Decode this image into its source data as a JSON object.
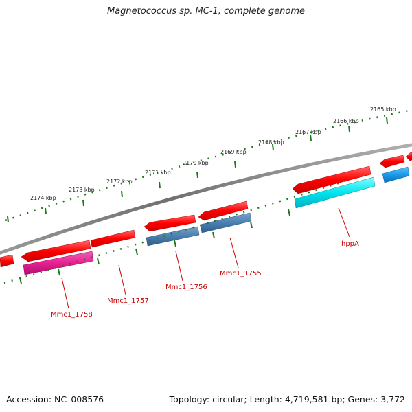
{
  "title": "Magnetococcus sp. MC-1, complete genome",
  "footer": {
    "accession": "Accession: NC_008576",
    "topology": "Topology: circular; Length: 4,719,581 bp; Genes: 3,772"
  },
  "colors": {
    "backbone": "#808080",
    "ruler_ticks": "#1a7a1a",
    "forward_strand": "#ff0000",
    "label_color": "#cc0000",
    "gene_mmc1_1758": "#e8208f",
    "gene_mmc1_1757": "#ff5050",
    "gene_mmc1_1756": "#4a7fb0",
    "gene_mmc1_1755": "#4a7fb0",
    "gene_hppA": "#00e5ee"
  },
  "ruler": {
    "outer_labels": [
      "2165 kbp",
      "2166 kbp",
      "2167 kbp",
      "2168 kbp",
      "2169 kbp",
      "2170 kbp",
      "2171 kbp",
      "2172 kbp",
      "2173 kbp",
      "2174 kbp"
    ]
  },
  "gene_labels": [
    "Mmc1_1758",
    "Mmc1_1757",
    "Mmc1_1756",
    "Mmc1_1755",
    "hppA"
  ]
}
